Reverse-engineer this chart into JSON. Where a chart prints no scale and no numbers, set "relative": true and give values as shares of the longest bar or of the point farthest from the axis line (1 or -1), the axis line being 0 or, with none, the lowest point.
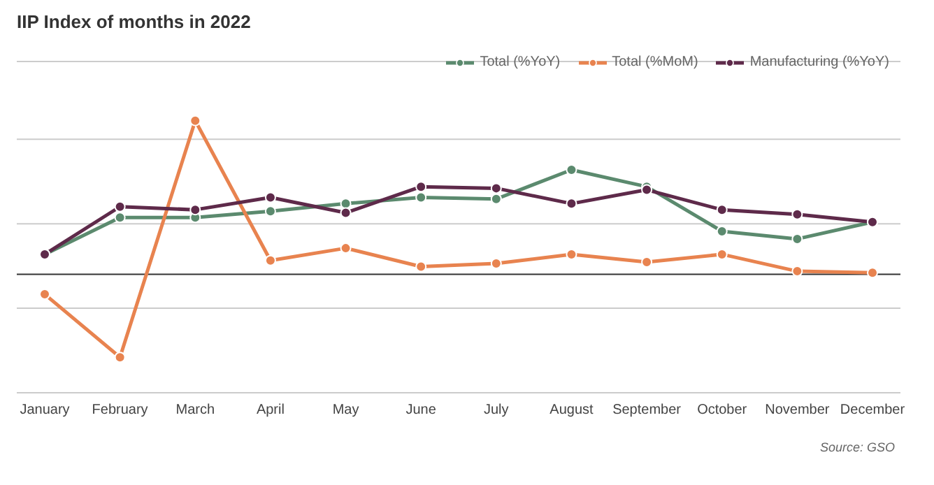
{
  "chart_data": {
    "type": "line",
    "title": "IIP Index of months in 2022",
    "relative": true,
    "categories": [
      "January",
      "February",
      "March",
      "April",
      "May",
      "June",
      "July",
      "August",
      "September",
      "October",
      "November",
      "December"
    ],
    "series": [
      {
        "name": "Total (%YoY)",
        "color": "#5b8a6e",
        "values": [
          0.13,
          0.37,
          0.37,
          0.41,
          0.46,
          0.5,
          0.49,
          0.68,
          0.57,
          0.28,
          0.23,
          0.34
        ]
      },
      {
        "name": "Total (%MoM)",
        "color": "#e8834f",
        "values": [
          -0.13,
          -0.54,
          1,
          0.09,
          0.17,
          0.05,
          0.07,
          0.13,
          0.08,
          0.13,
          0.02,
          0.01
        ]
      },
      {
        "name": "Manufacturing (%YoY)",
        "color": "#5e2a4a",
        "values": [
          0.13,
          0.44,
          0.42,
          0.5,
          0.4,
          0.57,
          0.56,
          0.46,
          0.55,
          0.42,
          0.39,
          0.34
        ]
      }
    ],
    "grid": "y",
    "legend": "top right",
    "marker": "circle",
    "line_style": "solid",
    "annotations": [
      "Source: GSO"
    ]
  }
}
